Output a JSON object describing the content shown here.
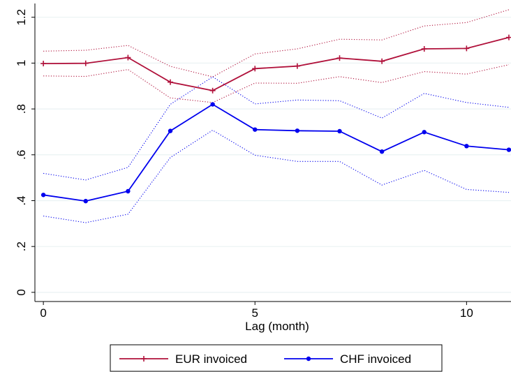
{
  "chart_data": {
    "type": "line",
    "title": "",
    "xlabel": "Lag (month)",
    "ylabel": "",
    "xlim": [
      -0.2,
      11.05
    ],
    "ylim": [
      -0.04,
      1.26
    ],
    "x_ticks": [
      0,
      5,
      10
    ],
    "x_tick_labels": [
      "0",
      "5",
      "10"
    ],
    "y_ticks": [
      0,
      0.2,
      0.4,
      0.6,
      0.8,
      1,
      1.2
    ],
    "y_tick_labels": [
      "0",
      ".2",
      ".4",
      ".6",
      ".8",
      "1",
      "1.2"
    ],
    "grid": "horizontal",
    "legend_position": "bottom",
    "x": [
      0,
      1,
      2,
      3,
      4,
      5,
      6,
      7,
      8,
      9,
      10,
      11
    ],
    "series": [
      {
        "name": "EUR invoiced",
        "color": "#b0103a",
        "marker": "plus",
        "values": [
          0.998,
          0.999,
          1.024,
          0.917,
          0.88,
          0.976,
          0.987,
          1.022,
          1.008,
          1.062,
          1.064,
          1.112
        ],
        "upper": [
          1.052,
          1.056,
          1.077,
          0.986,
          0.94,
          1.04,
          1.062,
          1.104,
          1.101,
          1.162,
          1.177,
          1.233
        ],
        "lower": [
          0.944,
          0.942,
          0.972,
          0.848,
          0.828,
          0.913,
          0.912,
          0.941,
          0.915,
          0.963,
          0.952,
          0.993
        ]
      },
      {
        "name": "CHF invoiced",
        "color": "#0000ee",
        "marker": "dot",
        "values": [
          0.425,
          0.398,
          0.441,
          0.704,
          0.82,
          0.71,
          0.705,
          0.703,
          0.614,
          0.699,
          0.638,
          0.622
        ],
        "upper": [
          0.519,
          0.49,
          0.545,
          0.82,
          0.94,
          0.822,
          0.839,
          0.836,
          0.76,
          0.868,
          0.828,
          0.807
        ],
        "lower": [
          0.333,
          0.304,
          0.341,
          0.588,
          0.707,
          0.598,
          0.571,
          0.571,
          0.468,
          0.532,
          0.449,
          0.436
        ]
      }
    ]
  }
}
